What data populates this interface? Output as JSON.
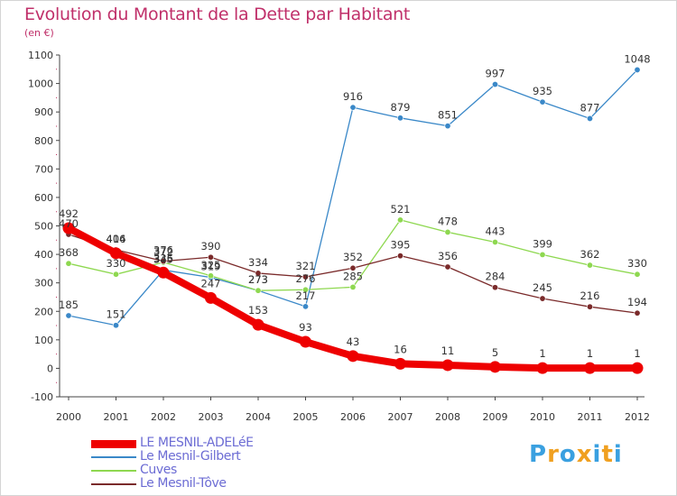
{
  "title": "Evolution du Montant de la Dette par Habitant",
  "unit": "(en €)",
  "brand": {
    "text": "Proxiti",
    "colors": [
      "#3aa0e0",
      "#f0a020",
      "#3aa0e0",
      "#f0a020",
      "#3aa0e0",
      "#f0a020",
      "#3aa0e0"
    ]
  },
  "chart_data": {
    "type": "line",
    "title": "Evolution du Montant de la Dette par Habitant",
    "ylabel": "(en €)",
    "xlabel": "",
    "x": [
      "2000",
      "2001",
      "2002",
      "2003",
      "2004",
      "2005",
      "2006",
      "2007",
      "2008",
      "2009",
      "2010",
      "2011",
      "2012"
    ],
    "ylim": [
      -100,
      1100
    ],
    "yticks": [
      "-100",
      "0",
      "100",
      "200",
      "300",
      "400",
      "500",
      "600",
      "700",
      "800",
      "900",
      "1000",
      "1100"
    ],
    "grid": false,
    "legend_position": "bottom-left",
    "series": [
      {
        "name": "LE MESNIL-ADELéE",
        "color": "#ee0000",
        "emphasis": true,
        "values": [
          492,
          404,
          336,
          247,
          153,
          93,
          43,
          16,
          11,
          5,
          1,
          1,
          1
        ],
        "labels": [
          "492",
          "404",
          "336",
          "247",
          "153",
          "93",
          "43",
          "16",
          "11",
          "5",
          "1",
          "1",
          "1"
        ]
      },
      {
        "name": "Le Mesnil-Gilbert",
        "color": "#3a88c8",
        "emphasis": false,
        "values": [
          185,
          151,
          345,
          319,
          273,
          217,
          916,
          879,
          851,
          997,
          935,
          877,
          1048
        ],
        "labels": [
          "185",
          "151",
          "345",
          "319",
          "273",
          "217",
          "916",
          "879",
          "851",
          "997",
          "935",
          "877",
          "1048"
        ]
      },
      {
        "name": "Cuves",
        "color": "#8ed850",
        "emphasis": false,
        "values": [
          368,
          330,
          372,
          325,
          273,
          276,
          285,
          521,
          478,
          443,
          399,
          362,
          330
        ],
        "labels": [
          "368",
          "330",
          "372",
          "325",
          "273",
          "276",
          "285",
          "521",
          "478",
          "443",
          "399",
          "362",
          "330"
        ]
      },
      {
        "name": "Le Mesnil-Tôve",
        "color": "#7a2a2a",
        "emphasis": false,
        "values": [
          470,
          416,
          376,
          390,
          334,
          321,
          352,
          395,
          356,
          284,
          245,
          216,
          194
        ],
        "labels": [
          "470",
          "416",
          "376",
          "390",
          "334",
          "321",
          "352",
          "395",
          "356",
          "284",
          "245",
          "216",
          "194"
        ]
      }
    ]
  }
}
